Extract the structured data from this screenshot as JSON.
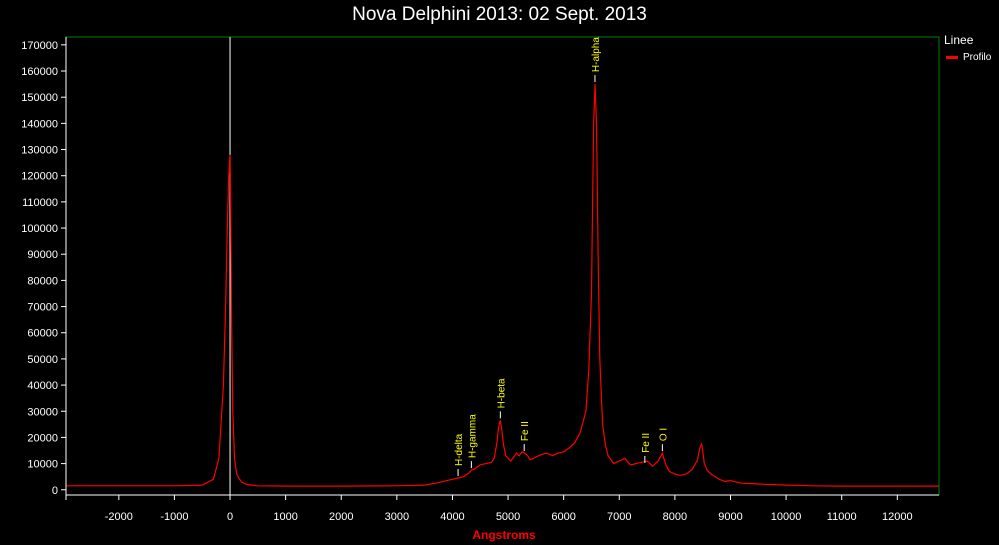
{
  "chart_data": {
    "type": "line",
    "title": "Nova Delphini 2013: 02 Sept. 2013",
    "xlabel": "Angstroms",
    "ylabel": "",
    "xlim": [
      -2950,
      12750
    ],
    "ylim": [
      -2000,
      173000
    ],
    "x_ticks": [
      -2000,
      -1000,
      0,
      1000,
      2000,
      3000,
      4000,
      5000,
      6000,
      7000,
      8000,
      9000,
      10000,
      11000,
      12000
    ],
    "y_ticks": [
      0,
      10000,
      20000,
      30000,
      40000,
      50000,
      60000,
      70000,
      80000,
      90000,
      100000,
      110000,
      120000,
      130000,
      140000,
      150000,
      160000,
      170000
    ],
    "grid": false,
    "legend": {
      "title": "Linee",
      "position": "top-right"
    },
    "series": [
      {
        "name": "Profilo",
        "color": "#ff0000",
        "x": [
          -2950,
          -1000,
          -500,
          -300,
          -200,
          -120,
          -80,
          -50,
          -25,
          -10,
          0,
          10,
          25,
          50,
          80,
          120,
          200,
          300,
          500,
          1000,
          2000,
          3000,
          3500,
          3700,
          3900,
          4000,
          4100,
          4200,
          4300,
          4340,
          4400,
          4500,
          4600,
          4700,
          4750,
          4800,
          4830,
          4861,
          4880,
          4920,
          4960,
          5000,
          5050,
          5100,
          5150,
          5200,
          5250,
          5300,
          5350,
          5400,
          5500,
          5600,
          5700,
          5800,
          5900,
          6000,
          6100,
          6200,
          6300,
          6400,
          6450,
          6500,
          6520,
          6540,
          6563,
          6590,
          6620,
          6650,
          6700,
          6750,
          6800,
          6900,
          7000,
          7100,
          7200,
          7300,
          7400,
          7500,
          7600,
          7700,
          7750,
          7775,
          7800,
          7850,
          7900,
          8000,
          8100,
          8200,
          8300,
          8400,
          8450,
          8480,
          8500,
          8530,
          8580,
          8650,
          8800,
          8900,
          9000,
          9100,
          9200,
          9300,
          9500,
          9700,
          10000,
          10200,
          10500,
          11000,
          12000,
          12750
        ],
        "y": [
          1500,
          1500,
          1800,
          4000,
          12000,
          40000,
          70000,
          100000,
          118000,
          125000,
          128000,
          110000,
          70000,
          30000,
          12000,
          6000,
          3000,
          2000,
          1500,
          1400,
          1400,
          1500,
          1800,
          2500,
          3500,
          4000,
          4500,
          5000,
          6500,
          7500,
          8000,
          9500,
          10000,
          10500,
          12000,
          18000,
          24000,
          26500,
          24000,
          17000,
          13000,
          12000,
          11000,
          12500,
          14000,
          13000,
          14500,
          14000,
          13000,
          11500,
          12500,
          13500,
          14000,
          13000,
          14000,
          14500,
          16000,
          18000,
          22000,
          30000,
          45000,
          75000,
          110000,
          140000,
          155000,
          140000,
          90000,
          50000,
          25000,
          17000,
          13000,
          10000,
          11000,
          12000,
          9500,
          10000,
          10500,
          11000,
          9000,
          11000,
          13000,
          14000,
          12000,
          9000,
          7000,
          6000,
          5500,
          6000,
          7500,
          11000,
          16000,
          17500,
          15000,
          10000,
          7500,
          6000,
          4000,
          3200,
          3500,
          3000,
          2500,
          2400,
          2200,
          2000,
          1800,
          1700,
          1500,
          1400,
          1400,
          1400
        ]
      }
    ],
    "reference_line": {
      "x": 0,
      "color": "#ffffff"
    },
    "annotations": [
      {
        "text": "H-delta",
        "x": 4101,
        "y": 4500
      },
      {
        "text": "H-gamma",
        "x": 4340,
        "y": 7500
      },
      {
        "text": "H-beta",
        "x": 4861,
        "y": 26500
      },
      {
        "text": "Fe II",
        "x": 5290,
        "y": 14000
      },
      {
        "text": "H-alpha",
        "x": 6563,
        "y": 155000
      },
      {
        "text": "Fe II",
        "x": 7460,
        "y": 9500
      },
      {
        "text": "O I",
        "x": 7775,
        "y": 14000
      }
    ],
    "colors": {
      "background": "#000000",
      "frame": "#008000",
      "axis": "#ffffff",
      "annotation": "#ffff00",
      "xlabel": "#ff0000"
    }
  }
}
